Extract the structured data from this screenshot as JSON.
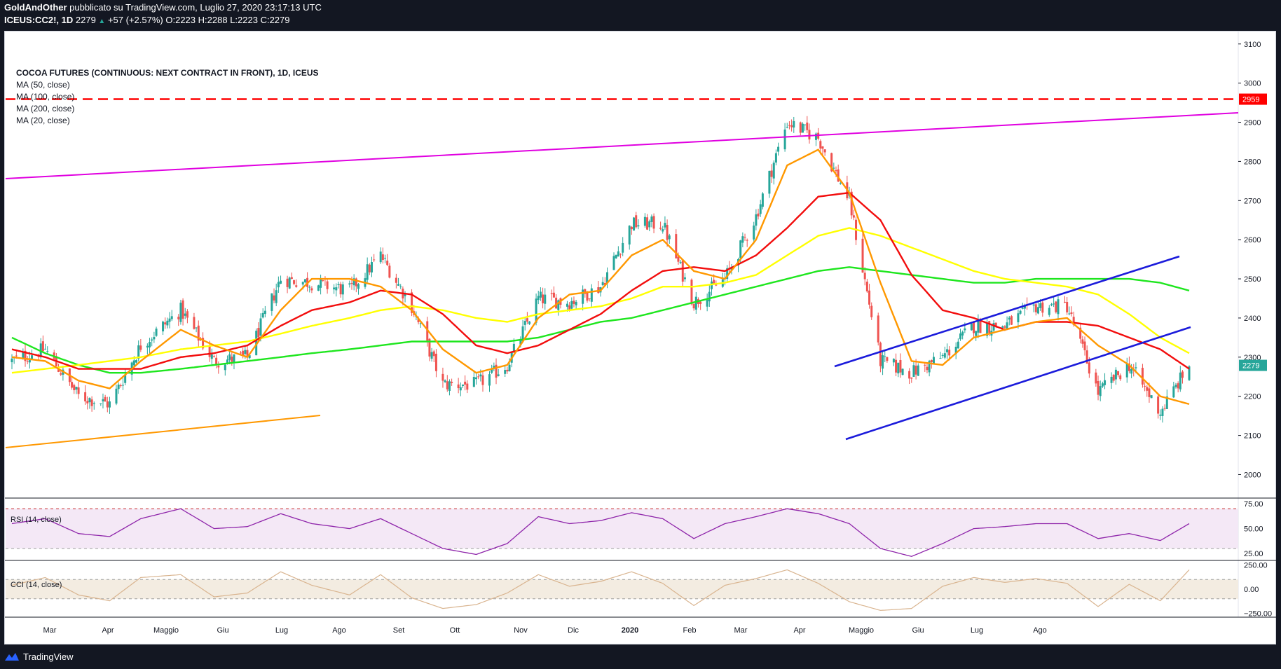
{
  "header": {
    "author": "GoldAndOther",
    "published_text": "pubblicato su TradingView.com, Luglio 27, 2020 23:17:13 UTC",
    "symbol_interval": "ICEUS:CC2!, 1D",
    "last": "2279",
    "change": "+57 (+2.57%)",
    "ohlc": {
      "o_label": "O:",
      "o": "2223",
      "h_label": "H:",
      "h": "2288",
      "l_label": "L:",
      "l": "2223",
      "c_label": "C:",
      "c": "2279"
    }
  },
  "legend": {
    "title": "COCOA FUTURES (CONTINUOUS: NEXT CONTRACT IN FRONT), 1D, ICEUS",
    "studies": [
      "MA (50, close)",
      "MA (100, close)",
      "MA (200, close)",
      "MA (20, close)"
    ]
  },
  "footer": {
    "brand": "TradingView"
  },
  "colors": {
    "bg": "#131722",
    "up": "#26a69a",
    "down": "#ef5350",
    "ma20": "#ff9800",
    "ma50": "#f20d0d",
    "ma100": "#ffff00",
    "ma200": "#1ee61e",
    "trend_magenta": "#e000e0",
    "trend_orange": "#ff9800",
    "channel_blue": "#1b1bdb",
    "resistance_red": "#ff0000",
    "rsi_line": "#8e24aa",
    "cci_line": "#d9b48f"
  },
  "chart_data": [
    {
      "type": "line",
      "title": "COCOA FUTURES (CONTINUOUS: NEXT CONTRACT IN FRONT), 1D, ICEUS",
      "x_ticks": [
        "Mar",
        "Apr",
        "Maggio",
        "Giu",
        "Lug",
        "Ago",
        "Set",
        "Ott",
        "Nov",
        "Dic",
        "2020",
        "Feb",
        "Mar",
        "Apr",
        "Maggio",
        "Giu",
        "Lug",
        "Ago"
      ],
      "y_ticks": [
        2000,
        2100,
        2200,
        2300,
        2400,
        2500,
        2600,
        2700,
        2800,
        2900,
        3000,
        3100
      ],
      "ylim": [
        1940,
        3130
      ],
      "price_label": "2279",
      "resistance_label": "2959",
      "resistance_level": 2959,
      "x_dates": [
        "2019-02-13",
        "2019-02-28",
        "2019-03-15",
        "2019-03-29",
        "2019-04-12",
        "2019-04-30",
        "2019-05-15",
        "2019-05-30",
        "2019-06-14",
        "2019-06-28",
        "2019-07-15",
        "2019-07-29",
        "2019-08-12",
        "2019-08-26",
        "2019-09-10",
        "2019-09-24",
        "2019-10-08",
        "2019-10-22",
        "2019-11-05",
        "2019-11-19",
        "2019-12-03",
        "2019-12-17",
        "2019-12-31",
        "2020-01-14",
        "2020-01-28",
        "2020-02-11",
        "2020-02-25",
        "2020-03-10",
        "2020-03-24",
        "2020-04-07",
        "2020-04-21",
        "2020-05-05",
        "2020-05-19",
        "2020-06-02",
        "2020-06-16",
        "2020-06-30",
        "2020-07-14",
        "2020-07-27"
      ],
      "series": [
        {
          "name": "close",
          "values": [
            2290,
            2320,
            2200,
            2180,
            2330,
            2420,
            2290,
            2300,
            2500,
            2490,
            2470,
            2560,
            2430,
            2230,
            2230,
            2280,
            2450,
            2440,
            2480,
            2640,
            2640,
            2440,
            2500,
            2660,
            2900,
            2860,
            2700,
            2290,
            2260,
            2300,
            2380,
            2380,
            2430,
            2430,
            2210,
            2280,
            2160,
            2279
          ]
        },
        {
          "name": "MA (20, close)",
          "values": [
            2300,
            2290,
            2240,
            2220,
            2290,
            2370,
            2330,
            2300,
            2420,
            2500,
            2500,
            2480,
            2420,
            2320,
            2260,
            2280,
            2400,
            2460,
            2470,
            2560,
            2600,
            2520,
            2500,
            2600,
            2790,
            2830,
            2720,
            2490,
            2290,
            2280,
            2350,
            2370,
            2390,
            2400,
            2330,
            2280,
            2200,
            2180
          ]
        },
        {
          "name": "MA (50, close)",
          "values": [
            2320,
            2300,
            2270,
            2270,
            2270,
            2300,
            2310,
            2330,
            2380,
            2420,
            2440,
            2470,
            2460,
            2410,
            2330,
            2310,
            2330,
            2370,
            2410,
            2470,
            2520,
            2530,
            2520,
            2560,
            2630,
            2710,
            2720,
            2650,
            2510,
            2420,
            2400,
            2370,
            2390,
            2390,
            2380,
            2350,
            2320,
            2270
          ]
        },
        {
          "name": "MA (100, close)",
          "values": [
            2260,
            2270,
            2280,
            2290,
            2300,
            2320,
            2330,
            2340,
            2360,
            2380,
            2400,
            2420,
            2430,
            2420,
            2400,
            2390,
            2410,
            2420,
            2430,
            2450,
            2480,
            2480,
            2490,
            2510,
            2560,
            2610,
            2630,
            2610,
            2580,
            2550,
            2520,
            2500,
            2490,
            2480,
            2460,
            2410,
            2350,
            2310
          ]
        },
        {
          "name": "MA (200, close)",
          "values": [
            2350,
            2310,
            2280,
            2260,
            2260,
            2270,
            2280,
            2290,
            2300,
            2310,
            2320,
            2330,
            2340,
            2340,
            2340,
            2340,
            2350,
            2370,
            2390,
            2400,
            2420,
            2440,
            2460,
            2480,
            2500,
            2520,
            2530,
            2520,
            2510,
            2500,
            2490,
            2490,
            2500,
            2500,
            2500,
            2500,
            2490,
            2470
          ]
        }
      ]
    },
    {
      "type": "line",
      "title": "RSI (14, close)",
      "y_ticks": [
        25,
        50,
        75
      ],
      "ylim": [
        18,
        80
      ],
      "band": [
        30,
        70
      ],
      "series": [
        {
          "name": "RSI (14, close)",
          "values": [
            55,
            60,
            45,
            42,
            60,
            70,
            50,
            52,
            65,
            55,
            50,
            60,
            45,
            30,
            24,
            35,
            62,
            55,
            58,
            66,
            60,
            40,
            55,
            62,
            70,
            65,
            55,
            30,
            22,
            35,
            50,
            52,
            55,
            55,
            40,
            45,
            38,
            55
          ]
        }
      ]
    },
    {
      "type": "line",
      "title": "CCI (14, close)",
      "y_ticks": [
        -250,
        0,
        250
      ],
      "ylim": [
        -290,
        290
      ],
      "band": [
        -100,
        100
      ],
      "series": [
        {
          "name": "CCI (14, close)",
          "values": [
            40,
            120,
            -60,
            -120,
            120,
            150,
            -80,
            -40,
            180,
            40,
            -60,
            150,
            -90,
            -200,
            -160,
            -40,
            150,
            30,
            80,
            180,
            60,
            -170,
            40,
            110,
            200,
            60,
            -130,
            -220,
            -200,
            30,
            120,
            70,
            110,
            60,
            -180,
            50,
            -120,
            200
          ]
        }
      ]
    }
  ]
}
